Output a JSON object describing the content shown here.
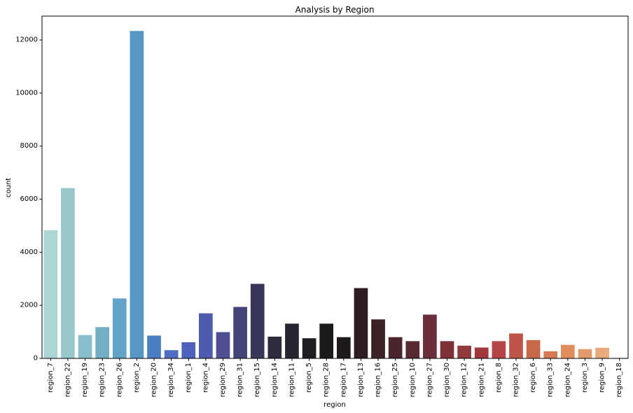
{
  "chart_data": {
    "type": "bar",
    "title": "Analysis by Region",
    "xlabel": "region",
    "ylabel": "count",
    "ylim": [
      0,
      12900
    ],
    "yticks": [
      0,
      2000,
      4000,
      6000,
      8000,
      10000,
      12000
    ],
    "grid": false,
    "categories": [
      "region_7",
      "region_22",
      "region_19",
      "region_23",
      "region_26",
      "region_2",
      "region_20",
      "region_34",
      "region_1",
      "region_4",
      "region_29",
      "region_31",
      "region_15",
      "region_14",
      "region_11",
      "region_5",
      "region_28",
      "region_17",
      "region_13",
      "region_16",
      "region_25",
      "region_10",
      "region_27",
      "region_30",
      "region_12",
      "region_21",
      "region_8",
      "region_32",
      "region_6",
      "region_33",
      "region_24",
      "region_3",
      "region_9",
      "region_18"
    ],
    "values": [
      4830,
      6420,
      880,
      1180,
      2260,
      12340,
      860,
      310,
      610,
      1700,
      990,
      1940,
      2810,
      820,
      1310,
      760,
      1310,
      800,
      2650,
      1470,
      800,
      650,
      1650,
      650,
      480,
      410,
      650,
      940,
      690,
      270,
      510,
      350,
      400,
      20
    ],
    "colors": [
      "#abd6d3",
      "#99c8cb",
      "#88bdcc",
      "#74aec4",
      "#62a3c8",
      "#5498c3",
      "#4a7ec3",
      "#4d6ec2",
      "#4d61bd",
      "#4e5aad",
      "#4f4f92",
      "#444479",
      "#37375a",
      "#2d2d3e",
      "#252631",
      "#1d1d22",
      "#1b1b1d",
      "#1e1a1b",
      "#2d1d20",
      "#3b2226",
      "#4a262c",
      "#58292f",
      "#6b2f3c",
      "#7d3036",
      "#903a3d",
      "#a1383d",
      "#b54645",
      "#c05449",
      "#c9674b",
      "#d57a54",
      "#e08d5d",
      "#e39b6c",
      "#e8aa7b",
      "#eec29a"
    ]
  }
}
